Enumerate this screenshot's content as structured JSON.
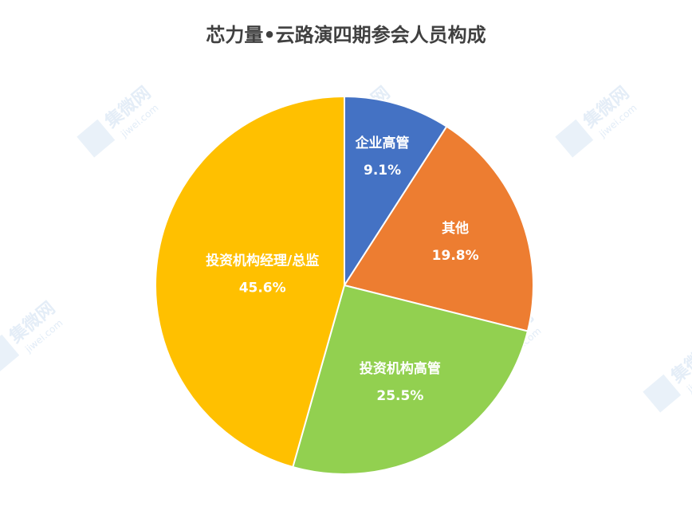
{
  "chart_data": {
    "type": "pie",
    "title": "芯力量•云路演四期参会人员构成",
    "categories": [
      "企业高管",
      "其他",
      "投资机构高管",
      "投资机构经理/总监"
    ],
    "values": [
      9.1,
      19.8,
      25.5,
      45.6
    ],
    "value_labels": [
      "9.1%",
      "19.8%",
      "25.5%",
      "45.6%"
    ],
    "colors": [
      "#4472c4",
      "#ed7d31",
      "#92d050",
      "#ffc000"
    ],
    "watermark": [
      "集微网",
      "jiwei.com"
    ]
  }
}
